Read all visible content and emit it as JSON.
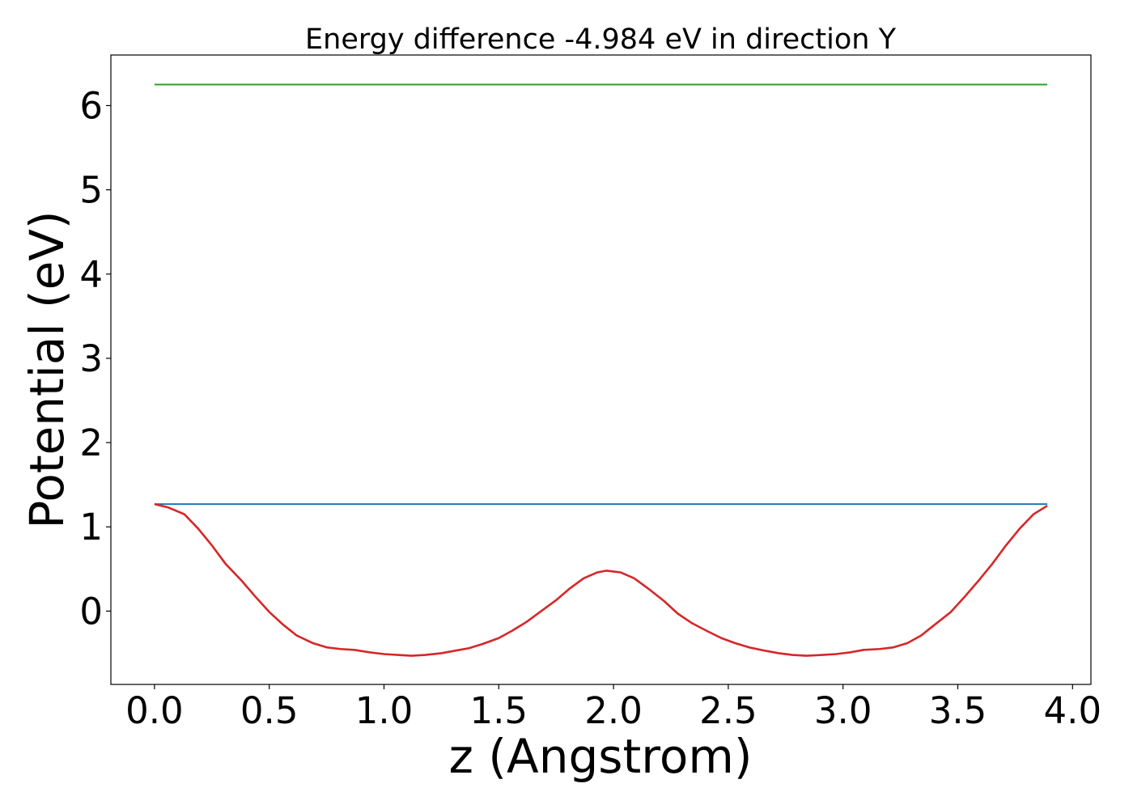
{
  "chart_data": {
    "type": "line",
    "title": "Energy difference -4.984 eV in direction Y",
    "xlabel": "z (Angstrom)",
    "ylabel": "Potential (eV)",
    "xlim": [
      -0.19,
      4.08
    ],
    "ylim": [
      -0.87,
      6.6
    ],
    "xticks": [
      "0.0",
      "0.5",
      "1.0",
      "1.5",
      "2.0",
      "2.5",
      "3.0",
      "3.5",
      "4.0"
    ],
    "yticks": [
      "0",
      "1",
      "2",
      "3",
      "4",
      "5",
      "6"
    ],
    "grid": false,
    "series": [
      {
        "color": "#2ca02c",
        "x": [
          0.0,
          3.89
        ],
        "y": [
          6.25,
          6.25
        ]
      },
      {
        "color": "#1f77b4",
        "x": [
          0.0,
          3.89
        ],
        "y": [
          1.27,
          1.27
        ]
      },
      {
        "color": "#d62728",
        "x": [
          0.0,
          0.06,
          0.13,
          0.19,
          0.25,
          0.31,
          0.38,
          0.44,
          0.5,
          0.56,
          0.62,
          0.69,
          0.75,
          0.81,
          0.87,
          0.94,
          1.0,
          1.06,
          1.12,
          1.18,
          1.25,
          1.31,
          1.37,
          1.43,
          1.5,
          1.56,
          1.62,
          1.68,
          1.75,
          1.81,
          1.87,
          1.93,
          1.97,
          2.03,
          2.09,
          2.15,
          2.22,
          2.28,
          2.34,
          2.41,
          2.47,
          2.53,
          2.59,
          2.66,
          2.72,
          2.78,
          2.84,
          2.91,
          2.97,
          3.03,
          3.09,
          3.16,
          3.22,
          3.28,
          3.34,
          3.4,
          3.47,
          3.53,
          3.59,
          3.65,
          3.71,
          3.77,
          3.83,
          3.89
        ],
        "y": [
          1.27,
          1.23,
          1.15,
          0.98,
          0.78,
          0.56,
          0.36,
          0.17,
          -0.01,
          -0.16,
          -0.29,
          -0.38,
          -0.43,
          -0.45,
          -0.46,
          -0.49,
          -0.51,
          -0.52,
          -0.53,
          -0.52,
          -0.5,
          -0.47,
          -0.44,
          -0.39,
          -0.32,
          -0.23,
          -0.13,
          -0.01,
          0.13,
          0.27,
          0.39,
          0.46,
          0.48,
          0.46,
          0.39,
          0.27,
          0.12,
          -0.03,
          -0.14,
          -0.24,
          -0.32,
          -0.38,
          -0.43,
          -0.47,
          -0.5,
          -0.52,
          -0.53,
          -0.52,
          -0.51,
          -0.49,
          -0.46,
          -0.45,
          -0.43,
          -0.38,
          -0.29,
          -0.16,
          -0.01,
          0.17,
          0.36,
          0.56,
          0.78,
          0.98,
          1.15,
          1.25
        ]
      }
    ]
  }
}
